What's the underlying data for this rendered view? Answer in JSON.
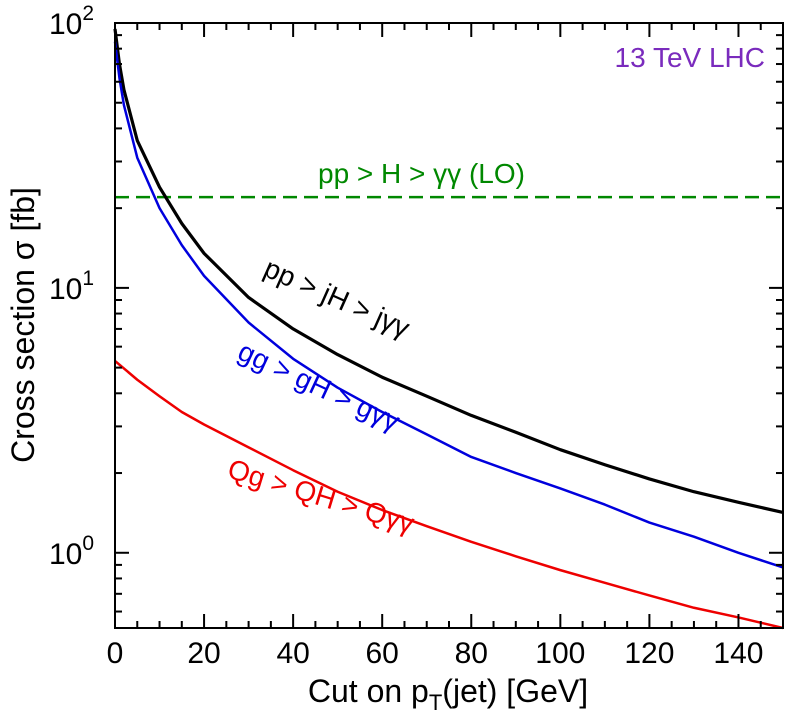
{
  "chart_data": {
    "type": "line",
    "xlabel": {
      "main": "Cut on p",
      "sub": "T",
      "rest": "(jet)  [GeV]"
    },
    "ylabel": "Cross section σ   [fb]",
    "xlim": [
      0,
      150
    ],
    "ylim": [
      0.52,
      100
    ],
    "yscale": "log",
    "x_ticks": [
      0,
      20,
      40,
      60,
      80,
      100,
      120,
      140
    ],
    "x_tick_labels": [
      "0",
      "20",
      "40",
      "60",
      "80",
      "100",
      "120",
      "140"
    ],
    "y_ticks": [
      {
        "base": "10",
        "exp": "0",
        "value": 1
      },
      {
        "base": "10",
        "exp": "1",
        "value": 10
      },
      {
        "base": "10",
        "exp": "2",
        "value": 100
      }
    ],
    "title_annotation": "13 TeV LHC",
    "series": [
      {
        "name": "pp > H > γγ  (LO)",
        "color": "#008800",
        "dashed": true,
        "x": [
          0,
          150
        ],
        "y": [
          22,
          22
        ]
      },
      {
        "name": "pp > jH > jγγ",
        "color": "#000000",
        "dashed": false,
        "x": [
          0,
          1,
          2,
          5,
          10,
          15,
          20,
          30,
          40,
          50,
          60,
          70,
          80,
          90,
          100,
          110,
          120,
          130,
          140,
          150
        ],
        "y": [
          95,
          70,
          56,
          36,
          24,
          17.5,
          13.5,
          9.2,
          7.0,
          5.6,
          4.6,
          3.9,
          3.3,
          2.85,
          2.45,
          2.15,
          1.9,
          1.7,
          1.55,
          1.42
        ]
      },
      {
        "name": "gg > gH > gγγ",
        "color": "#0000dd",
        "dashed": false,
        "x": [
          0,
          1,
          2,
          5,
          10,
          15,
          20,
          30,
          40,
          50,
          60,
          70,
          80,
          90,
          100,
          110,
          120,
          130,
          140,
          150
        ],
        "y": [
          85,
          62,
          49,
          31,
          20,
          14.5,
          11.1,
          7.4,
          5.4,
          4.2,
          3.4,
          2.8,
          2.3,
          2.0,
          1.75,
          1.52,
          1.3,
          1.15,
          1.0,
          0.88
        ]
      },
      {
        "name": "Qg > QH > Qγγ",
        "color": "#ee0000",
        "dashed": false,
        "x": [
          0,
          5,
          10,
          15,
          20,
          30,
          40,
          50,
          60,
          70,
          80,
          90,
          100,
          110,
          120,
          130,
          140,
          150
        ],
        "y": [
          5.3,
          4.5,
          3.9,
          3.4,
          3.05,
          2.5,
          2.05,
          1.7,
          1.45,
          1.26,
          1.1,
          0.97,
          0.86,
          0.77,
          0.69,
          0.62,
          0.57,
          0.52
        ]
      }
    ]
  }
}
